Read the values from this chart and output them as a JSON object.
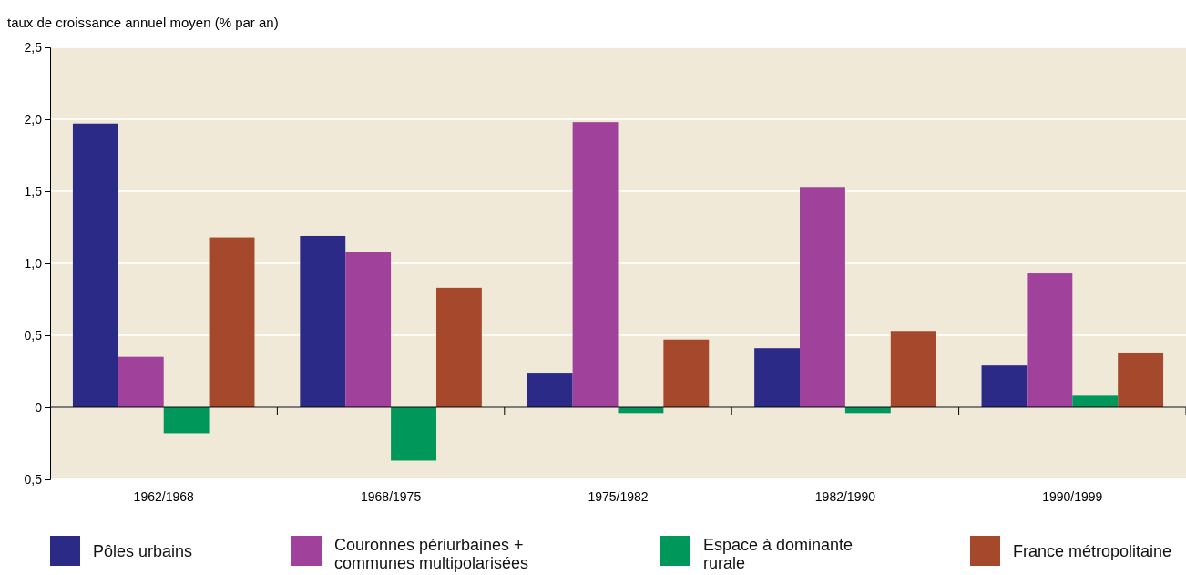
{
  "chart_data": {
    "type": "bar",
    "ylabel": "taux de croissance annuel moyen (% par an)",
    "categories": [
      "1962/1968",
      "1968/1975",
      "1975/1982",
      "1982/1990",
      "1990/1999"
    ],
    "series": [
      {
        "name": "Pôles urbains",
        "color": "#2b2a87",
        "values": [
          1.97,
          1.19,
          0.24,
          0.41,
          0.29
        ]
      },
      {
        "name": "Couronnes périurbaines + communes multipolarisées",
        "color": "#a0419b",
        "values": [
          0.35,
          1.08,
          1.98,
          1.53,
          0.93
        ]
      },
      {
        "name": "Espace à dominante rurale",
        "color": "#00985a",
        "values": [
          -0.18,
          -0.37,
          -0.04,
          -0.04,
          0.08
        ]
      },
      {
        "name": "France métropolitaine",
        "color": "#a5482c",
        "values": [
          1.18,
          0.83,
          0.47,
          0.53,
          0.38
        ]
      }
    ],
    "ylim": [
      -0.5,
      2.5
    ],
    "yticks": [
      {
        "value": -0.5,
        "label": "0,5"
      },
      {
        "value": 0,
        "label": "0"
      },
      {
        "value": 0.5,
        "label": "0,5"
      },
      {
        "value": 1,
        "label": "1,0"
      },
      {
        "value": 1.5,
        "label": "1,5"
      },
      {
        "value": 2,
        "label": "2,0"
      },
      {
        "value": 2.5,
        "label": "2,5"
      }
    ],
    "grid": "y",
    "legend": "bottom"
  }
}
